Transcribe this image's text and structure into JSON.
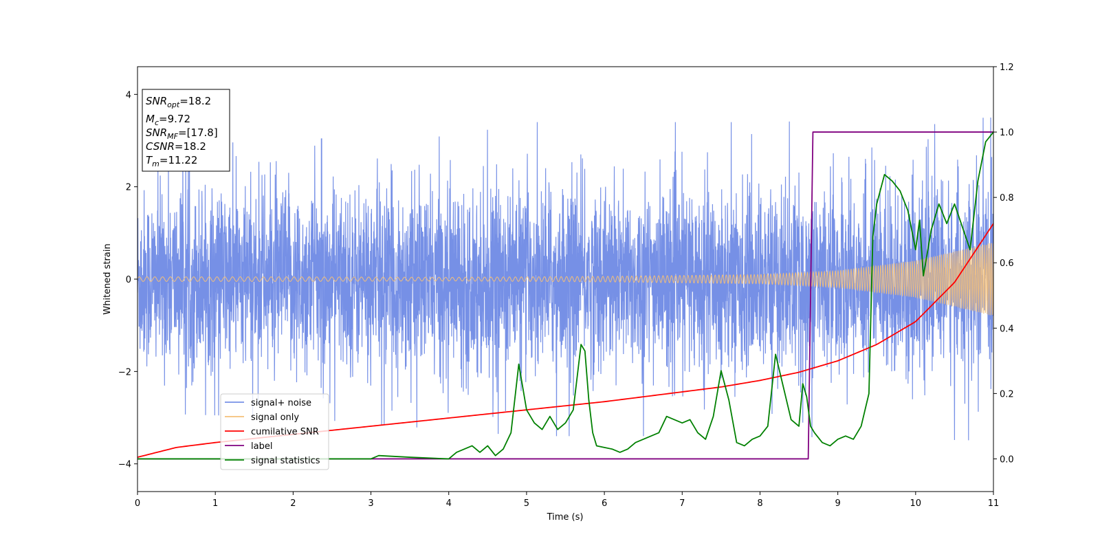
{
  "chart_data": {
    "type": "line",
    "xlabel": "Time (s)",
    "ylabel": "Whitened strain",
    "xlim": [
      0,
      11
    ],
    "ylim": [
      -4.6,
      4.6
    ],
    "y2lim": [
      -0.1,
      1.2
    ],
    "x_ticks": [
      "0",
      "1",
      "2",
      "3",
      "4",
      "5",
      "6",
      "7",
      "8",
      "9",
      "10",
      "11"
    ],
    "y_ticks": [
      "−4",
      "−2",
      "0",
      "2",
      "4"
    ],
    "y_tick_values": [
      -4,
      -2,
      0,
      2,
      4
    ],
    "y2_ticks": [
      "0.0",
      "0.2",
      "0.4",
      "0.6",
      "0.8",
      "1.0",
      "1.2"
    ],
    "y2_tick_values": [
      0.0,
      0.2,
      0.4,
      0.6,
      0.8,
      1.0,
      1.2
    ],
    "legend_position": "lower-left",
    "annotations": [
      {
        "var": "SNR",
        "sub": "opt",
        "value": "=18.2"
      },
      {
        "var": "M",
        "sub": "c",
        "value": "=9.72"
      },
      {
        "var": "SNR",
        "sub": "MF",
        "value": "=[17.8]"
      },
      {
        "var": "CSNR",
        "sub": "",
        "value": "=18.2"
      },
      {
        "var": "T",
        "sub": "m",
        "value": "=11.22"
      }
    ],
    "series": [
      {
        "name": "signal+ noise",
        "axis": "left",
        "color": "#7690e6",
        "kind": "noise",
        "envelope": [
          [
            0,
            2.9
          ],
          [
            2,
            3.0
          ],
          [
            5,
            3.4
          ],
          [
            8,
            3.4
          ],
          [
            11,
            3.5
          ]
        ]
      },
      {
        "name": "signal only",
        "axis": "left",
        "color": "#f5c078",
        "kind": "chirp",
        "amplitude": [
          [
            0,
            0.05
          ],
          [
            2,
            0.05
          ],
          [
            4,
            0.04
          ],
          [
            6,
            0.06
          ],
          [
            8,
            0.1
          ],
          [
            9,
            0.18
          ],
          [
            10,
            0.4
          ],
          [
            11,
            0.8
          ]
        ]
      },
      {
        "name": "cumilative SNR",
        "axis": "right",
        "color": "#ff0000",
        "x": [
          0,
          0.5,
          1,
          2,
          3,
          4,
          5,
          6,
          7,
          7.5,
          8,
          8.5,
          9,
          9.5,
          10,
          10.5,
          11
        ],
        "y": [
          0.005,
          0.035,
          0.05,
          0.075,
          0.1,
          0.125,
          0.15,
          0.175,
          0.205,
          0.22,
          0.24,
          0.265,
          0.3,
          0.35,
          0.42,
          0.54,
          0.72
        ]
      },
      {
        "name": "label",
        "axis": "right",
        "color": "#800080",
        "x": [
          0,
          8.62,
          8.68,
          11
        ],
        "y": [
          0.0,
          0.0,
          1.0,
          1.0
        ]
      },
      {
        "name": "signal statistics",
        "axis": "right",
        "color": "#008000",
        "x": [
          0,
          0.5,
          1,
          1.5,
          2,
          2.5,
          3,
          3.1,
          3.5,
          4,
          4.1,
          4.2,
          4.3,
          4.4,
          4.5,
          4.6,
          4.7,
          4.8,
          4.9,
          5.0,
          5.1,
          5.2,
          5.3,
          5.4,
          5.5,
          5.6,
          5.7,
          5.75,
          5.8,
          5.85,
          5.9,
          6.0,
          6.1,
          6.2,
          6.3,
          6.4,
          6.5,
          6.6,
          6.7,
          6.8,
          6.9,
          7.0,
          7.1,
          7.2,
          7.3,
          7.4,
          7.5,
          7.6,
          7.7,
          7.8,
          7.9,
          8.0,
          8.1,
          8.2,
          8.3,
          8.35,
          8.4,
          8.5,
          8.55,
          8.6,
          8.65,
          8.7,
          8.8,
          8.9,
          9.0,
          9.1,
          9.2,
          9.3,
          9.4,
          9.45,
          9.5,
          9.6,
          9.7,
          9.8,
          9.9,
          10.0,
          10.05,
          10.1,
          10.2,
          10.3,
          10.4,
          10.5,
          10.6,
          10.7,
          10.8,
          10.9,
          11.0
        ],
        "y": [
          0.0,
          0.0,
          0.0,
          0.0,
          0.0,
          0.0,
          0.0,
          0.01,
          0.005,
          0.0,
          0.02,
          0.03,
          0.04,
          0.02,
          0.04,
          0.01,
          0.03,
          0.08,
          0.29,
          0.15,
          0.11,
          0.09,
          0.13,
          0.09,
          0.11,
          0.15,
          0.35,
          0.33,
          0.18,
          0.08,
          0.04,
          0.035,
          0.03,
          0.02,
          0.03,
          0.05,
          0.06,
          0.07,
          0.08,
          0.13,
          0.12,
          0.11,
          0.12,
          0.08,
          0.06,
          0.13,
          0.27,
          0.18,
          0.05,
          0.04,
          0.06,
          0.07,
          0.1,
          0.32,
          0.22,
          0.17,
          0.12,
          0.1,
          0.23,
          0.19,
          0.1,
          0.08,
          0.05,
          0.04,
          0.06,
          0.07,
          0.06,
          0.1,
          0.2,
          0.68,
          0.78,
          0.87,
          0.85,
          0.82,
          0.76,
          0.64,
          0.73,
          0.56,
          0.7,
          0.78,
          0.72,
          0.78,
          0.71,
          0.64,
          0.85,
          0.97,
          1.0
        ]
      }
    ]
  }
}
